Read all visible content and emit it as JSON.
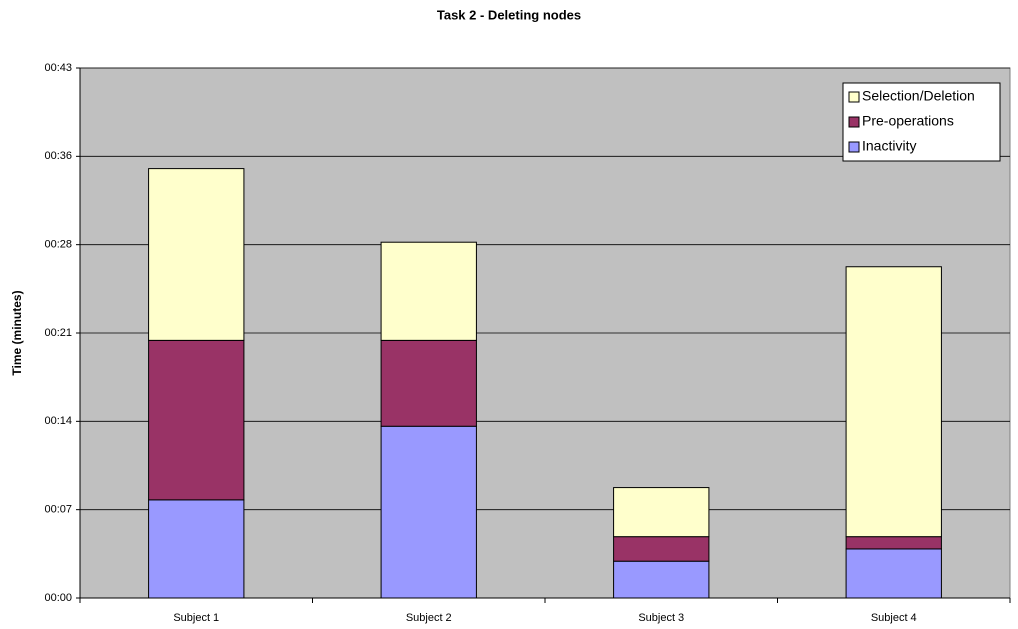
{
  "chart_data": {
    "type": "stacked_bar",
    "title": "Task 2 - Deleting nodes",
    "y_label": "Time (minutes)",
    "categories": [
      "Subject 1",
      "Subject 2",
      "Subject 3",
      "Subject 4"
    ],
    "series": [
      {
        "name": "Inactivity",
        "color": "#9999ff",
        "values": [
          8,
          14,
          3,
          4
        ]
      },
      {
        "name": "Pre-operations",
        "color": "#993366",
        "values": [
          13,
          7,
          2,
          1
        ]
      },
      {
        "name": "Selection/Deletion",
        "color": "#ffffcc",
        "values": [
          14,
          8,
          4,
          22
        ]
      }
    ],
    "ylim": [
      0,
      43.2
    ],
    "yticks": [
      {
        "value": 0,
        "label": "00:00"
      },
      {
        "value": 7.2,
        "label": "00:07"
      },
      {
        "value": 14.4,
        "label": "00:14"
      },
      {
        "value": 21.6,
        "label": "00:21"
      },
      {
        "value": 28.8,
        "label": "00:28"
      },
      {
        "value": 36,
        "label": "00:36"
      },
      {
        "value": 43.2,
        "label": "00:43"
      }
    ],
    "grid": true,
    "legend": "top-right"
  }
}
